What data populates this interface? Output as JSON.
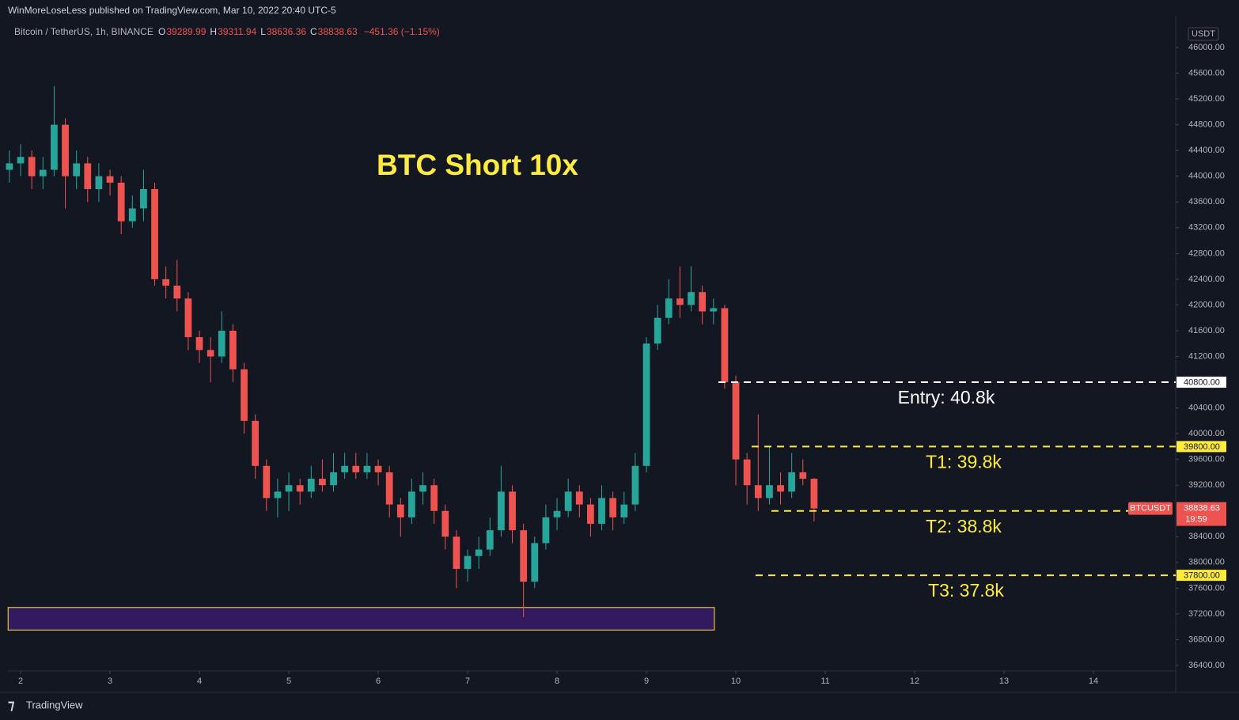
{
  "header": {
    "publisher": "WinMoreLoseLess published on TradingView.com, Mar 10, 2022 20:40 UTC-5",
    "brand": "TradingView"
  },
  "chart_data": {
    "type": "candlestick",
    "title": "BTC Short 10x",
    "symbol": "Bitcoin / TetherUS, 1h, BINANCE",
    "ohlc_header": {
      "o_label": "O",
      "o": "39289.99",
      "h_label": "H",
      "h": "39311.94",
      "l_label": "L",
      "l": "38636.36",
      "c_label": "C",
      "c": "38838.63",
      "change": "−451.36 (−1.15%)"
    },
    "currency": "USDT",
    "up_color": "#26a69a",
    "down_color": "#ef5350",
    "xlim": [
      1.858,
      14.92
    ],
    "xticks": [
      2,
      3,
      4,
      5,
      6,
      7,
      8,
      9,
      10,
      11,
      12,
      13,
      14
    ],
    "ylim": [
      36314,
      46492
    ],
    "yticks": [
      {
        "value": 36400,
        "label": "36400.00"
      },
      {
        "value": 36800,
        "label": "36800.00"
      },
      {
        "value": 37200,
        "label": "37200.00"
      },
      {
        "value": 37600,
        "label": "37600.00"
      },
      {
        "value": 38000,
        "label": "38000.00"
      },
      {
        "value": 38400,
        "label": "38400.00"
      },
      {
        "value": 39200,
        "label": "39200.00"
      },
      {
        "value": 39600,
        "label": "39600.00"
      },
      {
        "value": 40000,
        "label": "40000.00"
      },
      {
        "value": 40400,
        "label": "40400.00"
      },
      {
        "value": 41200,
        "label": "41200.00"
      },
      {
        "value": 41600,
        "label": "41600.00"
      },
      {
        "value": 42000,
        "label": "42000.00"
      },
      {
        "value": 42400,
        "label": "42400.00"
      },
      {
        "value": 42800,
        "label": "42800.00"
      },
      {
        "value": 43200,
        "label": "43200.00"
      },
      {
        "value": 43600,
        "label": "43600.00"
      },
      {
        "value": 44000,
        "label": "44000.00"
      },
      {
        "value": 44400,
        "label": "44400.00"
      },
      {
        "value": 44800,
        "label": "44800.00"
      },
      {
        "value": 45200,
        "label": "45200.00"
      },
      {
        "value": 45600,
        "label": "45600.00"
      },
      {
        "value": 46000,
        "label": "46000.00"
      }
    ],
    "x": [
      1.875,
      2,
      2.125,
      2.25,
      2.375,
      2.5,
      2.625,
      2.75,
      2.875,
      3,
      3.125,
      3.25,
      3.375,
      3.5,
      3.625,
      3.75,
      3.875,
      4,
      4.125,
      4.25,
      4.375,
      4.5,
      4.625,
      4.75,
      4.875,
      5,
      5.125,
      5.25,
      5.375,
      5.5,
      5.625,
      5.75,
      5.875,
      6,
      6.125,
      6.25,
      6.375,
      6.5,
      6.625,
      6.75,
      6.875,
      7,
      7.125,
      7.25,
      7.375,
      7.5,
      7.625,
      7.75,
      7.875,
      8,
      8.125,
      8.25,
      8.375,
      8.5,
      8.625,
      8.75,
      8.875,
      9,
      9.125,
      9.25,
      9.375,
      9.5,
      9.625,
      9.75,
      9.875,
      10,
      10.125,
      10.25,
      10.375,
      10.5,
      10.625,
      10.75,
      10.875
    ],
    "open": [
      44100,
      44200,
      44300,
      44000,
      44100,
      44800,
      44000,
      44200,
      43800,
      44000,
      43900,
      43300,
      43500,
      43800,
      42400,
      42300,
      42100,
      41500,
      41300,
      41200,
      41600,
      41000,
      40200,
      39500,
      39000,
      39100,
      39200,
      39100,
      39300,
      39200,
      39400,
      39500,
      39400,
      39500,
      39400,
      38900,
      38700,
      39100,
      39200,
      38800,
      38400,
      37900,
      38100,
      38200,
      38500,
      39100,
      38500,
      37700,
      38300,
      38700,
      38800,
      39100,
      38900,
      38600,
      39000,
      38700,
      38900,
      39500,
      41400,
      41800,
      42100,
      42000,
      42200,
      41900,
      41950,
      40800,
      39600,
      39200,
      39000,
      39200,
      39100,
      39400,
      39300
    ],
    "high": [
      44400,
      44500,
      44400,
      44300,
      45400,
      44900,
      44400,
      44300,
      44200,
      44100,
      44000,
      43700,
      44100,
      43900,
      42600,
      42700,
      42200,
      41600,
      41500,
      41900,
      41700,
      41100,
      40300,
      39600,
      39300,
      39400,
      39300,
      39500,
      39600,
      39700,
      39700,
      39700,
      39700,
      39600,
      39500,
      39000,
      39300,
      39400,
      39300,
      38900,
      38500,
      38200,
      38400,
      38700,
      39500,
      39200,
      38600,
      38400,
      38900,
      39000,
      39300,
      39200,
      39000,
      39200,
      39100,
      39100,
      39700,
      41500,
      42000,
      42400,
      42600,
      42600,
      42300,
      42100,
      42000,
      40900,
      39700,
      40300,
      39800,
      39400,
      39700,
      39600,
      39311.94
    ],
    "low": [
      43900,
      44000,
      43800,
      43800,
      44000,
      43500,
      43800,
      43600,
      43600,
      43700,
      43100,
      43200,
      43300,
      42300,
      42100,
      41900,
      41300,
      41100,
      40800,
      41100,
      40800,
      40000,
      39300,
      38800,
      38700,
      38800,
      38900,
      39000,
      39100,
      39100,
      39300,
      39300,
      39300,
      39200,
      38700,
      38400,
      38600,
      38900,
      38600,
      38200,
      37600,
      37700,
      37900,
      38100,
      38400,
      38300,
      37150,
      37600,
      38200,
      38500,
      38700,
      38700,
      38400,
      38500,
      38500,
      38600,
      38800,
      39400,
      41300,
      41700,
      41800,
      41900,
      41700,
      41700,
      40700,
      39200,
      38900,
      38800,
      38900,
      38900,
      39000,
      39200,
      38636.36
    ],
    "close": [
      44200,
      44300,
      44000,
      44100,
      44800,
      44000,
      44200,
      43800,
      44000,
      43900,
      43300,
      43500,
      43800,
      42400,
      42300,
      42100,
      41500,
      41300,
      41200,
      41600,
      41000,
      40200,
      39500,
      39000,
      39100,
      39200,
      39100,
      39300,
      39200,
      39400,
      39500,
      39400,
      39500,
      39400,
      38900,
      38700,
      39100,
      39200,
      38800,
      38400,
      37900,
      38100,
      38200,
      38500,
      39100,
      38500,
      37700,
      38300,
      38700,
      38800,
      39100,
      38900,
      38600,
      39000,
      38700,
      38900,
      39500,
      41400,
      41800,
      42100,
      42000,
      42200,
      41900,
      41950,
      40800,
      39600,
      39200,
      39000,
      39200,
      39100,
      39400,
      39300,
      38838.63
    ],
    "levels": [
      {
        "text": "Entry: 40.8k",
        "value": 40800,
        "price_label": "40800.00",
        "color": "#ffffff"
      },
      {
        "text": "T1: 39.8k",
        "value": 39800,
        "price_label": "39800.00",
        "color": "#ffeb3b"
      },
      {
        "text": "T2: 38.8k",
        "value": 38800,
        "price_label": "38800.00",
        "color": "#ffeb3b"
      },
      {
        "text": "T3: 37.8k",
        "value": 37800,
        "price_label": "37800.00",
        "color": "#ffeb3b"
      }
    ],
    "zone": {
      "x_range": [
        1.86,
        9.76
      ],
      "low": 36950,
      "high": 37300,
      "color": "#311b5e"
    },
    "last": {
      "symbol": "BTCUSDT",
      "price_label": "38838.63",
      "countdown": "19:59"
    }
  }
}
